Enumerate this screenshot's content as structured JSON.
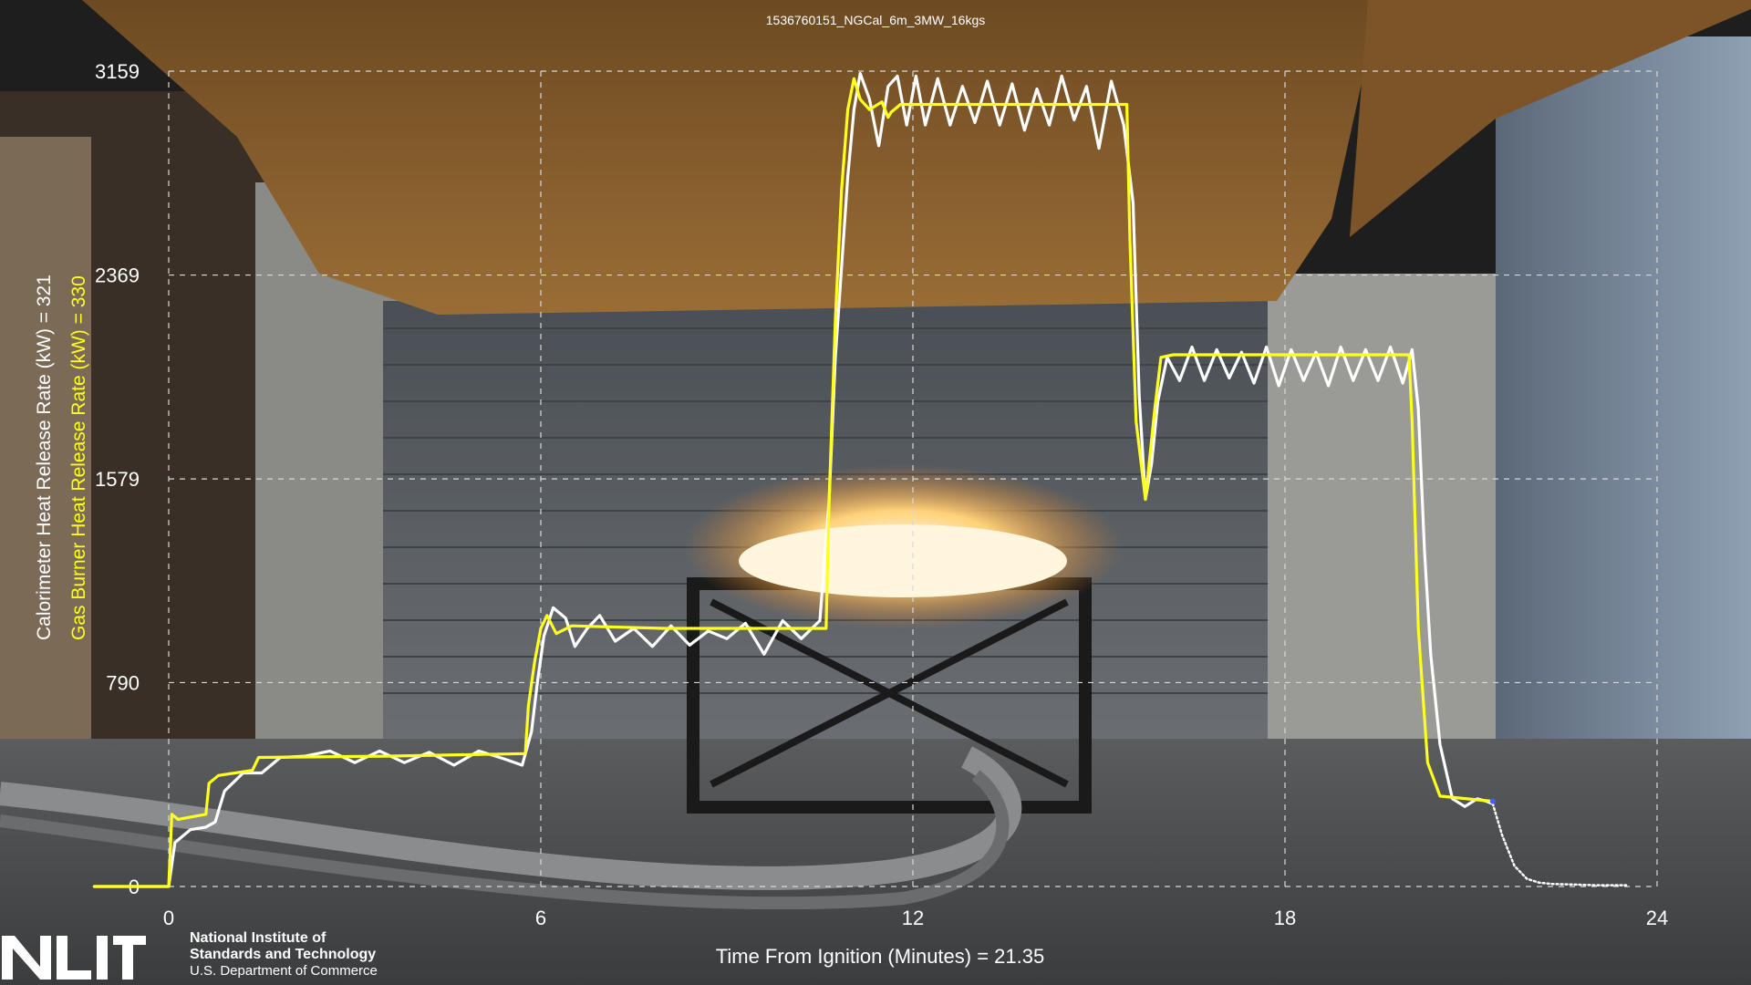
{
  "chart_data": {
    "type": "line",
    "title": "1536760151_NGCal_6m_3MW_16kgs",
    "xlabel": "Time From Ignition (Minutes) = 21.35",
    "xlim": [
      0,
      24
    ],
    "ylim": [
      0,
      3159
    ],
    "xticks": [
      "0",
      "6",
      "12",
      "18",
      "24"
    ],
    "yticks": [
      "0",
      "790",
      "1579",
      "2369",
      "3159"
    ],
    "grid": true,
    "series": [
      {
        "name": "Calorimeter Heat Release Rate (kW) = 321",
        "color": "#ffffff",
        "x": [
          -1.2,
          0.0,
          0.1,
          0.35,
          0.6,
          0.75,
          0.9,
          1.2,
          1.5,
          1.8,
          2.2,
          2.6,
          3.0,
          3.4,
          3.8,
          4.2,
          4.6,
          5.0,
          5.4,
          5.7,
          5.85,
          5.95,
          6.05,
          6.2,
          6.4,
          6.55,
          6.75,
          6.95,
          7.2,
          7.5,
          7.8,
          8.1,
          8.4,
          8.7,
          9.0,
          9.3,
          9.6,
          9.9,
          10.2,
          10.5,
          10.65,
          10.75,
          10.85,
          10.95,
          11.05,
          11.15,
          11.3,
          11.45,
          11.6,
          11.75,
          11.9,
          12.05,
          12.2,
          12.4,
          12.6,
          12.8,
          13.0,
          13.2,
          13.4,
          13.6,
          13.8,
          14.0,
          14.2,
          14.4,
          14.6,
          14.8,
          15.0,
          15.2,
          15.4,
          15.55,
          15.65,
          15.75,
          15.85,
          15.95,
          16.1,
          16.3,
          16.5,
          16.7,
          16.9,
          17.1,
          17.3,
          17.5,
          17.7,
          17.9,
          18.1,
          18.3,
          18.5,
          18.7,
          18.9,
          19.1,
          19.3,
          19.5,
          19.7,
          19.9,
          20.05,
          20.15,
          20.25,
          20.35,
          20.5,
          20.7,
          20.9,
          21.1,
          21.25,
          21.35
        ],
        "y": [
          0,
          0,
          170,
          220,
          230,
          250,
          370,
          440,
          440,
          500,
          505,
          525,
          480,
          525,
          480,
          520,
          470,
          525,
          495,
          470,
          600,
          800,
          970,
          1080,
          1040,
          930,
          1000,
          1050,
          950,
          1000,
          930,
          1010,
          935,
          990,
          960,
          1020,
          900,
          1030,
          960,
          1030,
          1500,
          2050,
          2400,
          2750,
          3010,
          3150,
          3050,
          2870,
          3100,
          3140,
          2950,
          3140,
          2950,
          3130,
          2950,
          3100,
          2960,
          3120,
          2950,
          3110,
          2930,
          3090,
          2950,
          3140,
          2970,
          3100,
          2860,
          3120,
          2950,
          2650,
          1900,
          1500,
          1640,
          1880,
          2050,
          1960,
          2090,
          1960,
          2080,
          1970,
          2070,
          1950,
          2090,
          1940,
          2080,
          1960,
          2070,
          1940,
          2090,
          1960,
          2080,
          1960,
          2090,
          1950,
          2080,
          1850,
          1300,
          900,
          550,
          340,
          310,
          340,
          330,
          321
        ]
      },
      {
        "name": "Gas Burner Heat Release Rate (kW) = 330",
        "color": "#ffff20",
        "x": [
          -1.2,
          0.0,
          0.05,
          0.15,
          0.6,
          0.65,
          0.8,
          1.35,
          1.45,
          3.5,
          5.75,
          5.8,
          5.9,
          6.0,
          6.1,
          6.25,
          6.5,
          8.0,
          10.6,
          10.65,
          10.75,
          10.85,
          10.95,
          11.05,
          11.15,
          11.3,
          11.5,
          11.6,
          11.65,
          11.8,
          15.45,
          15.5,
          15.6,
          15.75,
          15.9,
          16.0,
          16.2,
          20.0,
          20.05,
          20.15,
          20.3,
          20.5,
          21.35
        ],
        "y": [
          0,
          0,
          280,
          260,
          280,
          400,
          430,
          450,
          500,
          505,
          515,
          700,
          870,
          1000,
          1050,
          980,
          1010,
          1000,
          1000,
          1500,
          2200,
          2700,
          3010,
          3130,
          3050,
          3010,
          3040,
          2980,
          3000,
          3030,
          3030,
          2500,
          1800,
          1500,
          1850,
          2050,
          2060,
          2060,
          1800,
          1000,
          480,
          350,
          330
        ]
      },
      {
        "name": "",
        "color": "#ffffff",
        "style": "dotted",
        "x": [
          21.35,
          21.5,
          21.7,
          21.9,
          22.1,
          22.3,
          22.6,
          23.0,
          23.5
        ],
        "y": [
          321,
          200,
          80,
          30,
          15,
          10,
          8,
          5,
          5
        ]
      }
    ]
  }
}
